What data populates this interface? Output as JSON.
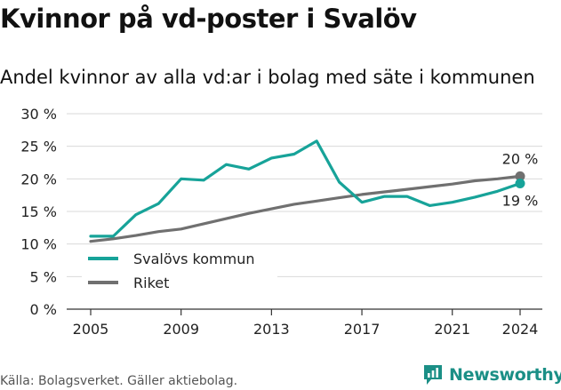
{
  "title": "Kvinnor på vd-poster i Svalöv",
  "subtitle": "Andel kvinnor av alla vd:ar i bolag med säte i kommunen",
  "source": "Källa: Bolagsverket. Gäller aktiebolag.",
  "brand": {
    "name": "Newsworthy",
    "icon": "newsworthy-logo-icon",
    "color": "#1b8f86"
  },
  "chart_data": {
    "type": "line",
    "xlim": [
      2005,
      2024
    ],
    "ylim": [
      0,
      30
    ],
    "yticks": [
      0,
      5,
      10,
      15,
      20,
      25,
      30
    ],
    "ytick_labels": [
      "0 %",
      "5 %",
      "10 %",
      "15 %",
      "20 %",
      "25 %",
      "30 %"
    ],
    "xticks": [
      2005,
      2009,
      2013,
      2017,
      2021,
      2024
    ],
    "xtick_labels": [
      "2005",
      "2009",
      "2013",
      "2017",
      "2021",
      "2024"
    ],
    "grid": "horizontal",
    "legend_position": "bottom-left",
    "x": [
      2005,
      2006,
      2007,
      2008,
      2009,
      2010,
      2011,
      2012,
      2013,
      2014,
      2015,
      2016,
      2017,
      2018,
      2019,
      2020,
      2021,
      2022,
      2023,
      2024
    ],
    "series": [
      {
        "name": "Svalövs kommun",
        "color": "#17a399",
        "values": [
          11.2,
          11.2,
          14.5,
          16.2,
          20.0,
          19.8,
          22.2,
          21.5,
          23.2,
          23.8,
          25.8,
          19.5,
          16.4,
          17.3,
          17.3,
          15.9,
          16.4,
          17.2,
          18.1,
          19.3
        ],
        "end_label": "19 %"
      },
      {
        "name": "Riket",
        "color": "#707070",
        "values": [
          10.4,
          10.8,
          11.3,
          11.9,
          12.3,
          13.1,
          13.9,
          14.7,
          15.4,
          16.1,
          16.6,
          17.1,
          17.6,
          18.0,
          18.4,
          18.8,
          19.2,
          19.7,
          20.0,
          20.4
        ],
        "end_label": "20 %"
      }
    ]
  }
}
